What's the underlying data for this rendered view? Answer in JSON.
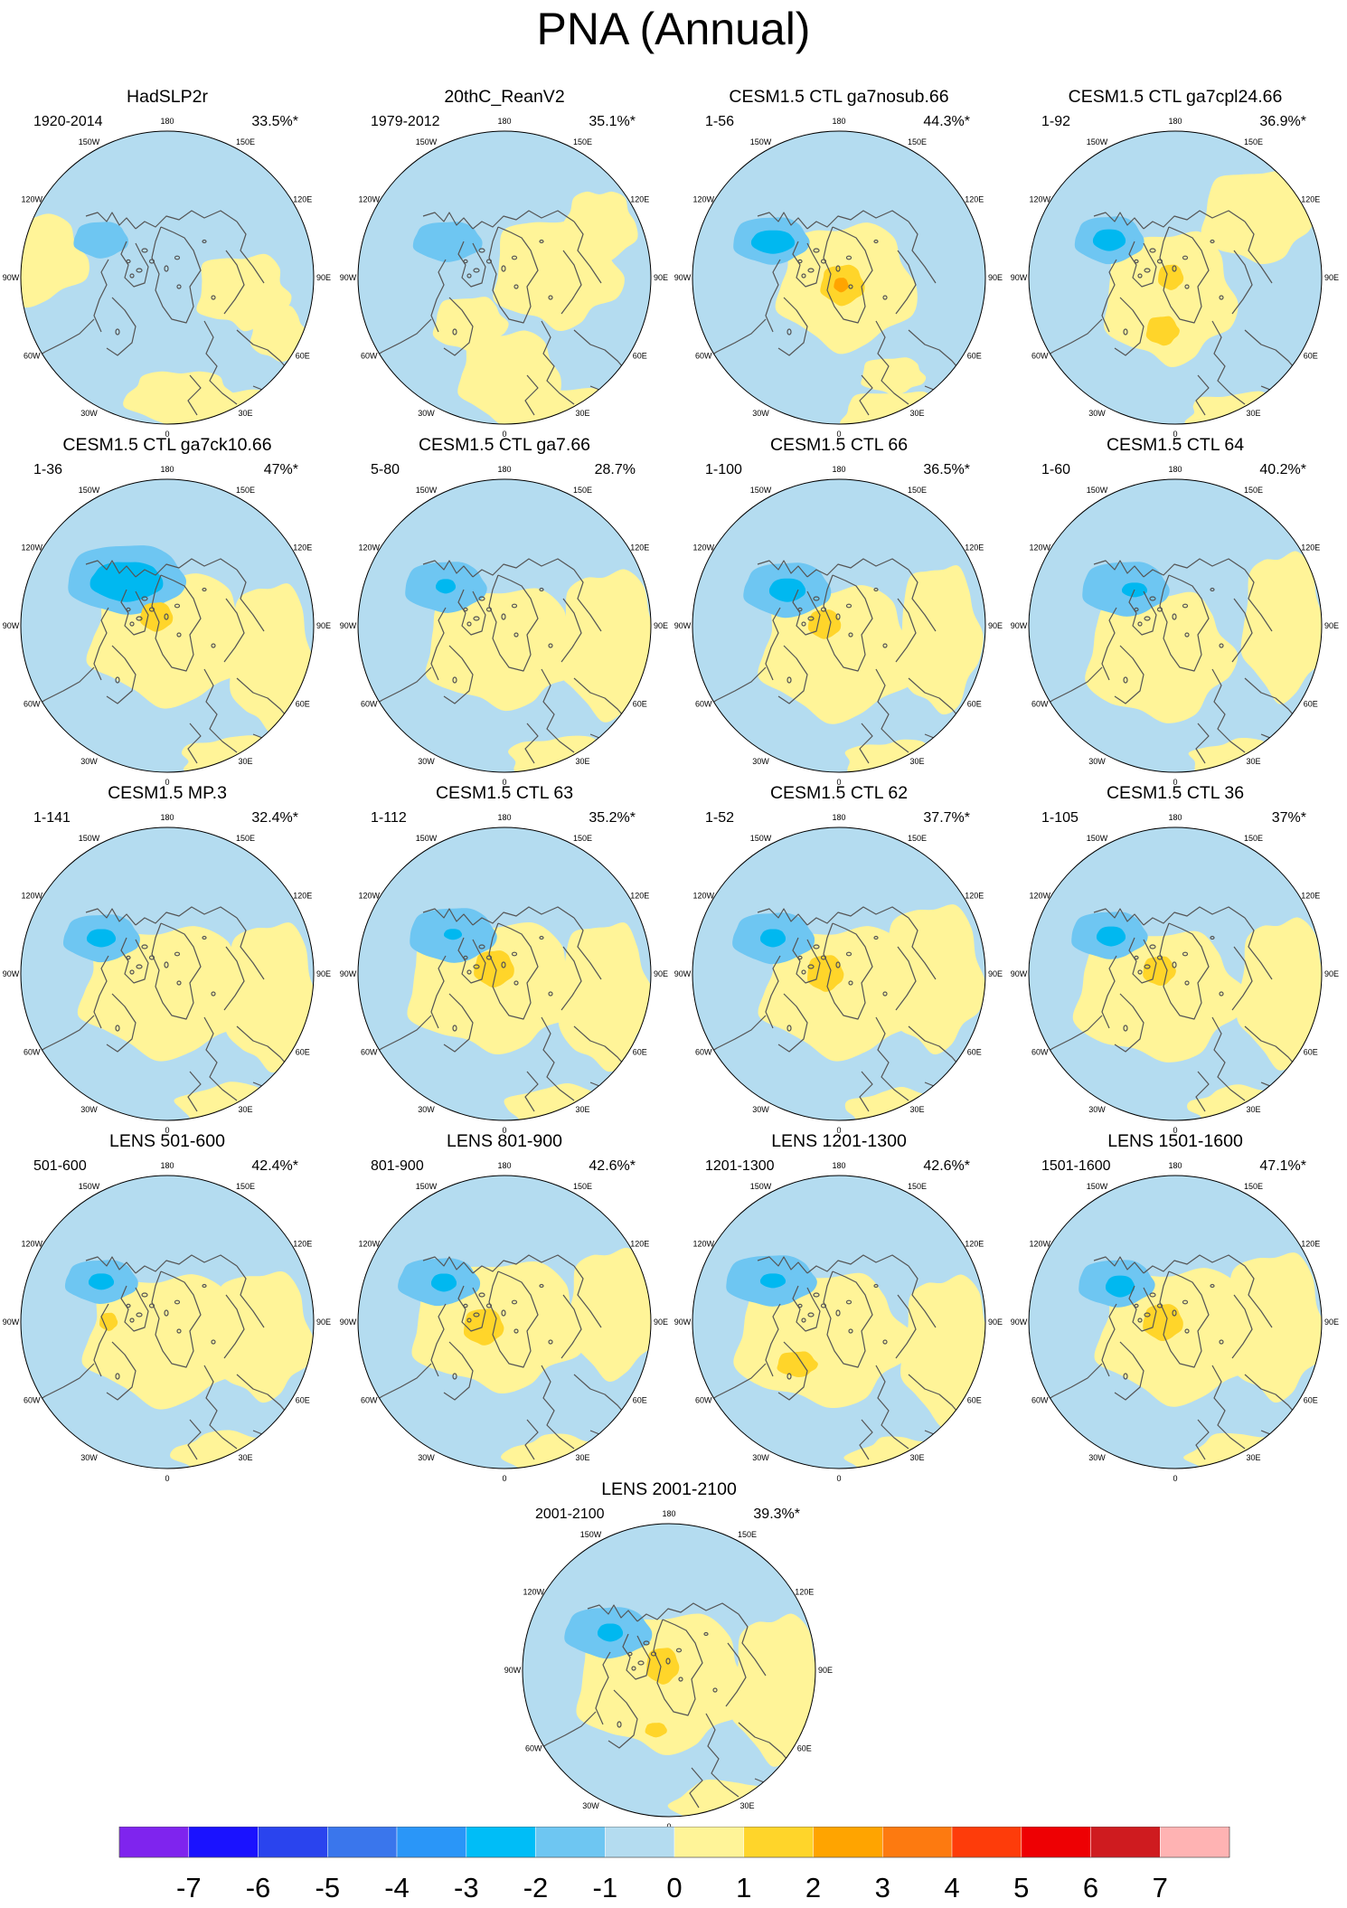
{
  "title": "PNA (Annual)",
  "colors": {
    "land_line": "#555555",
    "neg_1": "#b4dcf0",
    "neg_2": "#6ec6f2",
    "neg_3": "#00b8f0",
    "pos_1": "#fff498",
    "pos_2": "#ffd52a",
    "pos_3": "#ffa400"
  },
  "panels": [
    {
      "title": "HadSLP2r",
      "period": "1920-2014",
      "percent": "33.5%*"
    },
    {
      "title": "20thC_ReanV2",
      "period": "1979-2012",
      "percent": "35.1%*"
    },
    {
      "title": "CESM1.5 CTL ga7nosub.66",
      "period": "1-56",
      "percent": "44.3%*"
    },
    {
      "title": "CESM1.5 CTL ga7cpl24.66",
      "period": "1-92",
      "percent": "36.9%*"
    },
    {
      "title": "CESM1.5 CTL ga7ck10.66",
      "period": "1-36",
      "percent": "47%*"
    },
    {
      "title": "CESM1.5 CTL ga7.66",
      "period": "5-80",
      "percent": "28.7%"
    },
    {
      "title": "CESM1.5 CTL 66",
      "period": "1-100",
      "percent": "36.5%*"
    },
    {
      "title": "CESM1.5 CTL 64",
      "period": "1-60",
      "percent": "40.2%*"
    },
    {
      "title": "CESM1.5 MP.3",
      "period": "1-141",
      "percent": "32.4%*"
    },
    {
      "title": "CESM1.5 CTL 63",
      "period": "1-112",
      "percent": "35.2%*"
    },
    {
      "title": "CESM1.5 CTL 62",
      "period": "1-52",
      "percent": "37.7%*"
    },
    {
      "title": "CESM1.5 CTL 36",
      "period": "1-105",
      "percent": "37%*"
    },
    {
      "title": "LENS 501-600",
      "period": "501-600",
      "percent": "42.4%*"
    },
    {
      "title": "LENS 801-900",
      "period": "801-900",
      "percent": "42.6%*"
    },
    {
      "title": "LENS 1201-1300",
      "period": "1201-1300",
      "percent": "42.6%*"
    },
    {
      "title": "LENS 1501-1600",
      "period": "1501-1600",
      "percent": "47.1%*"
    },
    {
      "title": "LENS 2001-2100",
      "period": "2001-2100",
      "percent": "39.3%*"
    }
  ],
  "longitude_labels": [
    "180",
    "150E",
    "120E",
    "90E",
    "60E",
    "30E",
    "0",
    "30W",
    "60W",
    "90W",
    "120W",
    "150W"
  ],
  "colorbar": {
    "labels": [
      "-7",
      "-6",
      "-5",
      "-4",
      "-3",
      "-2",
      "-1",
      "0",
      "1",
      "2",
      "3",
      "4",
      "5",
      "6",
      "7"
    ],
    "colors": [
      "#7f24ee",
      "#1a12ff",
      "#2a44ee",
      "#3a76ec",
      "#2a96f8",
      "#00bdf7",
      "#6ec6f2",
      "#b4dcf0",
      "#fff498",
      "#ffd52a",
      "#ffa400",
      "#fd7a10",
      "#fe3c0a",
      "#ee0003",
      "#cf1b1f",
      "#ffb3b3"
    ]
  }
}
